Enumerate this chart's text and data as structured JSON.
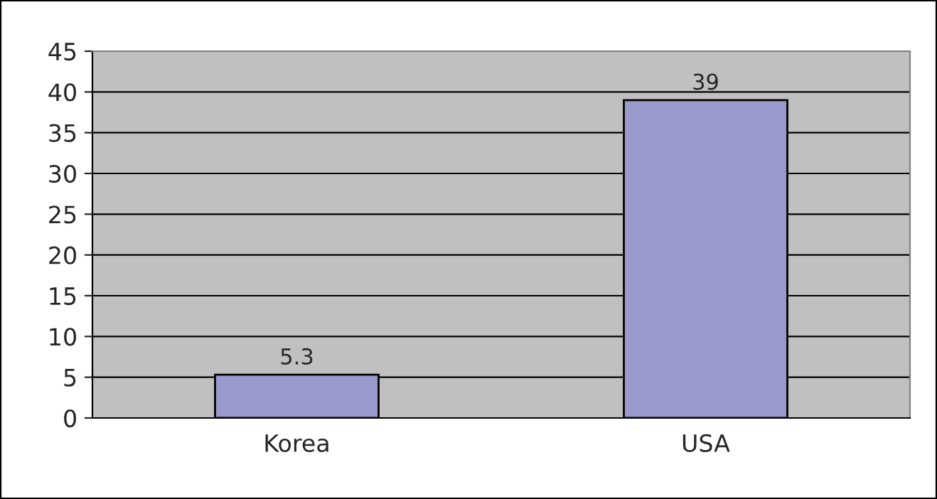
{
  "chart_data": {
    "type": "bar",
    "categories": [
      "Korea",
      "USA"
    ],
    "values": [
      5.3,
      39
    ],
    "color": "#9999cc",
    "ylim": [
      0,
      45
    ],
    "yticks": [
      0,
      5,
      10,
      15,
      20,
      25,
      30,
      35,
      40,
      45
    ],
    "grid": "y",
    "data_labels": true
  }
}
